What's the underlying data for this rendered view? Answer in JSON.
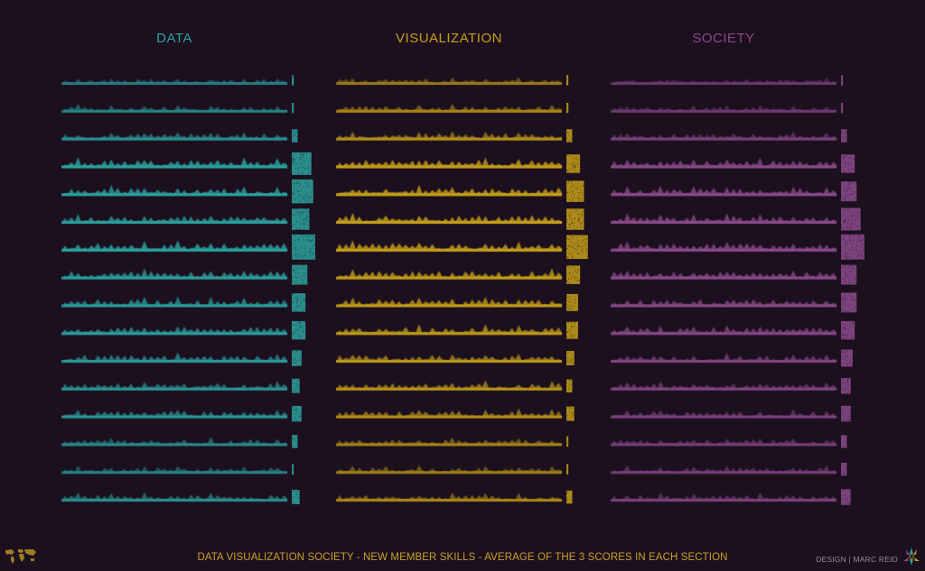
{
  "chart_data": {
    "type": "area",
    "title": "",
    "footer": "DATA VISUALIZATION SOCIETY - NEW MEMBER SKILLS - AVERAGE OF THE 3 SCORES IN EACH SECTION",
    "credit": "DESIGN | MARC REID",
    "grid": false,
    "legend": "none",
    "rows": 16,
    "panels": [
      {
        "name": "DATA",
        "color": "#2ba3a0",
        "row_totals": [
          1,
          1,
          3,
          10,
          11,
          9,
          12,
          8,
          7,
          7,
          5,
          4,
          5,
          3,
          1,
          4
        ],
        "row_intensity": [
          0.35,
          0.45,
          0.6,
          0.95,
          0.9,
          0.85,
          0.95,
          0.85,
          0.8,
          0.8,
          0.75,
          0.65,
          0.7,
          0.5,
          0.4,
          0.55
        ]
      },
      {
        "name": "VISUALIZATION",
        "color": "#c4a019",
        "row_totals": [
          1,
          1,
          3,
          7,
          9,
          9,
          11,
          7,
          6,
          6,
          4,
          3,
          4,
          1,
          1,
          3
        ],
        "row_intensity": [
          0.35,
          0.5,
          0.65,
          0.95,
          0.95,
          0.95,
          0.95,
          0.9,
          0.85,
          0.8,
          0.75,
          0.7,
          0.65,
          0.45,
          0.4,
          0.5
        ]
      },
      {
        "name": "SOCIETY",
        "color": "#8c4b8d",
        "row_totals": [
          1,
          1,
          3,
          7,
          8,
          10,
          12,
          8,
          8,
          7,
          6,
          5,
          5,
          3,
          3,
          5
        ],
        "row_intensity": [
          0.3,
          0.35,
          0.5,
          0.85,
          0.85,
          0.85,
          0.9,
          0.85,
          0.8,
          0.75,
          0.7,
          0.6,
          0.55,
          0.45,
          0.45,
          0.5
        ]
      }
    ]
  },
  "icons": {
    "map": "world-map-icon",
    "logo": "dvs-logo-icon"
  }
}
